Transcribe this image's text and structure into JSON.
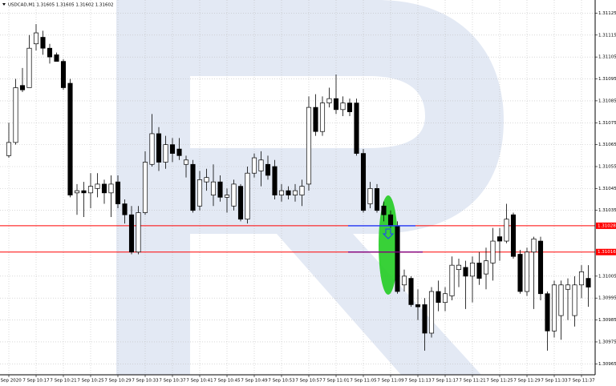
{
  "chart_data": {
    "type": "candlestick",
    "title": "USDCAD,M1 1.31605 1.31605 1.31602 1.31602",
    "categories": [
      "7 Sep 2020",
      null,
      null,
      null,
      "7 Sep 10:17",
      null,
      null,
      null,
      "7 Sep 10:21",
      null,
      null,
      null,
      "7 Sep 10:25",
      null,
      null,
      null,
      "7 Sep 10:29",
      null,
      null,
      null,
      "7 Sep 10:33",
      null,
      null,
      null,
      "7 Sep 10:37",
      null,
      null,
      null,
      "7 Sep 10:41",
      null,
      null,
      null,
      "7 Sep 10:45",
      null,
      null,
      null,
      "7 Sep 10:49",
      null,
      null,
      null,
      "7 Sep 10:53",
      null,
      null,
      null,
      "7 Sep 10:57",
      null,
      null,
      null,
      "7 Sep 11:01",
      null,
      null,
      null,
      "7 Sep 11:05",
      null,
      null,
      null,
      "7 Sep 11:09",
      null,
      null,
      null,
      "7 Sep 11:13",
      null,
      null,
      null,
      "7 Sep 11:17",
      null,
      null,
      null,
      "7 Sep 11:21",
      null,
      null,
      null,
      "7 Sep 11:25",
      null,
      null,
      null,
      "7 Sep 11:29",
      null,
      null,
      null,
      "7 Sep 11:33",
      null,
      null,
      null,
      "7 Sep 11:37",
      null
    ],
    "open": [
      1.3106,
      1.31066,
      1.31092,
      1.31091,
      1.31111,
      1.31114,
      1.31109,
      1.31106,
      1.31103,
      1.31093,
      1.31043,
      1.31044,
      1.31043,
      1.31045,
      1.31047,
      1.31043,
      1.31048,
      1.31038,
      1.31033,
      1.31016,
      1.31034,
      1.31056,
      1.3107,
      1.31057,
      1.31065,
      1.31063,
      1.31056,
      1.31056,
      1.31037,
      1.31048,
      1.31042,
      1.31048,
      1.31041,
      1.31037,
      1.31046,
      1.31031,
      1.31052,
      1.31053,
      1.31056,
      1.31055,
      1.31042,
      1.31044,
      1.31042,
      1.31042,
      1.31047,
      1.31082,
      1.31071,
      1.31084,
      1.31086,
      1.31081,
      1.31084,
      1.31084,
      1.31061,
      1.31038,
      1.31045,
      1.31037,
      1.31033,
      1.31028,
      1.31001,
      1.31004,
      1.30992,
      1.30992,
      1.30979,
      1.30998,
      1.30993,
      1.30996,
      1.31008,
      1.31009,
      1.31005,
      1.31011,
      1.31006,
      1.31011,
      1.31023,
      1.31021,
      1.31033,
      1.31015,
      1.30998,
      1.31016,
      1.31021,
      1.30997,
      1.3098,
      1.30987,
      1.30999,
      1.30987,
      1.31001,
      1.31004
    ],
    "high": [
      1.31075,
      1.31095,
      1.311,
      1.31115,
      1.3112,
      1.31117,
      1.31111,
      1.31107,
      1.31104,
      1.31095,
      1.31047,
      1.31048,
      1.31052,
      1.31052,
      1.31049,
      1.31051,
      1.31051,
      1.3104,
      1.31037,
      1.31037,
      1.31062,
      1.31079,
      1.31073,
      1.31069,
      1.31068,
      1.31068,
      1.3106,
      1.31058,
      1.31053,
      1.31054,
      1.31056,
      1.31051,
      1.31045,
      1.31049,
      1.31047,
      1.31055,
      1.31061,
      1.31062,
      1.3106,
      1.31058,
      1.31047,
      1.31046,
      1.31047,
      1.31049,
      1.31087,
      1.31088,
      1.31087,
      1.31091,
      1.31097,
      1.31087,
      1.31086,
      1.31086,
      1.31063,
      1.31048,
      1.31047,
      1.31039,
      1.31035,
      1.3103,
      1.31008,
      1.31005,
      1.30999,
      1.30995,
      1.31,
      1.31003,
      1.31,
      1.31014,
      1.31013,
      1.31012,
      1.31014,
      1.31016,
      1.31018,
      1.31027,
      1.31027,
      1.31038,
      1.31034,
      1.31017,
      1.31018,
      1.31023,
      1.31023,
      1.30998,
      1.31003,
      1.31003,
      1.31004,
      1.31005,
      1.3101,
      1.3101
    ],
    "low": [
      1.31059,
      1.31065,
      1.31089,
      1.31091,
      1.31108,
      1.31106,
      1.31102,
      1.31103,
      1.3109,
      1.31041,
      1.31033,
      1.31032,
      1.31036,
      1.31041,
      1.31038,
      1.31032,
      1.31036,
      1.31029,
      1.31015,
      1.31015,
      1.31033,
      1.31055,
      1.31053,
      1.31054,
      1.31057,
      1.31058,
      1.3105,
      1.31034,
      1.31035,
      1.31044,
      1.31037,
      1.31039,
      1.31034,
      1.31035,
      1.3103,
      1.31029,
      1.3105,
      1.31046,
      1.31049,
      1.3104,
      1.31039,
      1.3104,
      1.31039,
      1.31037,
      1.31044,
      1.31069,
      1.31069,
      1.31082,
      1.31079,
      1.31078,
      1.31078,
      1.3106,
      1.31034,
      1.31036,
      1.31034,
      1.3103,
      1.31027,
      1.30997,
      1.30998,
      1.30991,
      1.30985,
      1.30971,
      1.30977,
      1.30989,
      1.30989,
      1.30994,
      1.31,
      1.3099,
      1.30993,
      1.31001,
      1.30999,
      1.31003,
      1.31012,
      1.3102,
      1.31013,
      1.30997,
      1.30996,
      1.3099,
      1.30994,
      1.30971,
      1.30977,
      1.30976,
      1.30985,
      1.30982,
      1.30995,
      1.30991
    ],
    "close": [
      1.31066,
      1.31091,
      1.3109,
      1.31109,
      1.31116,
      1.31109,
      1.31105,
      1.31103,
      1.31091,
      1.31042,
      1.31044,
      1.31043,
      1.31046,
      1.31047,
      1.31043,
      1.31047,
      1.31038,
      1.31033,
      1.31016,
      1.31034,
      1.31057,
      1.3107,
      1.31057,
      1.31065,
      1.31061,
      1.3106,
      1.31058,
      1.31035,
      1.31049,
      1.3105,
      1.31048,
      1.31041,
      1.31042,
      1.31047,
      1.31031,
      1.31052,
      1.31059,
      1.31058,
      1.31051,
      1.31042,
      1.31044,
      1.31042,
      1.31044,
      1.31046,
      1.31082,
      1.31071,
      1.31084,
      1.31086,
      1.31081,
      1.31084,
      1.3108,
      1.31061,
      1.31035,
      1.31045,
      1.31035,
      1.31033,
      1.31028,
      1.30998,
      1.31005,
      1.30992,
      1.30991,
      1.30979,
      1.30998,
      1.30993,
      1.30997,
      1.3101,
      1.3101,
      1.31005,
      1.31011,
      1.31004,
      1.31012,
      1.31021,
      1.31021,
      1.31031,
      1.31014,
      1.30998,
      1.31016,
      1.31022,
      1.30997,
      1.3098,
      1.31001,
      1.31001,
      1.31001,
      1.31001,
      1.31007,
      1.31
    ],
    "up_color": "#ffffff",
    "down_color": "#000000",
    "ylim": [
      1.3096,
      1.31131
    ],
    "yticks": [
      1.31125,
      1.31115,
      1.31105,
      1.31095,
      1.31085,
      1.31075,
      1.31065,
      1.31055,
      1.31045,
      1.31035,
      1.31005,
      1.30995,
      1.30985,
      1.30975,
      1.30965
    ],
    "grid": true,
    "levels": [
      {
        "value": 1.31028,
        "color": "#ff0000"
      },
      {
        "value": 1.31016,
        "color": "#ff0000"
      }
    ],
    "segments": [
      {
        "value": 1.31028,
        "color": "#1f3fff"
      },
      {
        "value": 1.31016,
        "color": "#800080"
      }
    ]
  }
}
